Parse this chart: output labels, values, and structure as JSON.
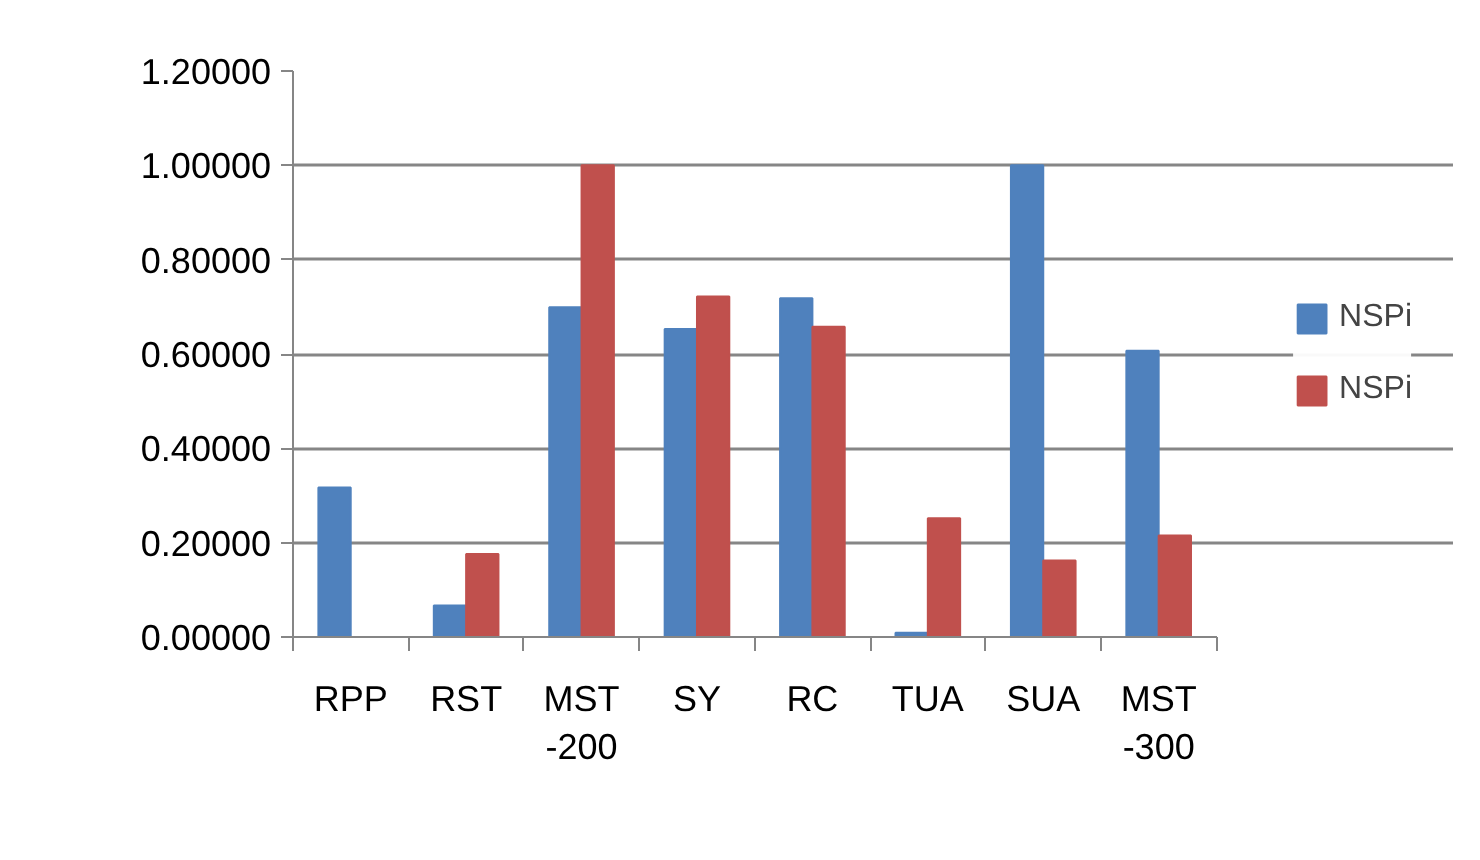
{
  "chart_data": {
    "type": "bar",
    "categories": [
      "RPP",
      "RST",
      "MST -200",
      "SY",
      "RC",
      "TUA",
      "SUA",
      "MST -300"
    ],
    "series": [
      {
        "name": "NSPi",
        "color": "#4f81bd",
        "values": [
          0.317,
          0.067,
          0.699,
          0.653,
          0.718,
          0.009,
          1.0,
          0.607
        ]
      },
      {
        "name": "NSPi",
        "color": "#c0504d",
        "values": [
          0,
          0.176,
          1.0,
          0.722,
          0.658,
          0.252,
          0.162,
          0.215
        ]
      }
    ],
    "ylim": [
      0,
      1.2
    ],
    "yticks": [
      {
        "value": 0,
        "label": "0.00000"
      },
      {
        "value": 0.2,
        "label": "0.20000"
      },
      {
        "value": 0.4,
        "label": "0.40000"
      },
      {
        "value": 0.6,
        "label": "0.60000"
      },
      {
        "value": 0.8,
        "label": "0.80000"
      },
      {
        "value": 1.0,
        "label": "1.00000"
      },
      {
        "value": 1.2,
        "label": "1.20000"
      }
    ],
    "grid": "y",
    "legend": "right"
  }
}
